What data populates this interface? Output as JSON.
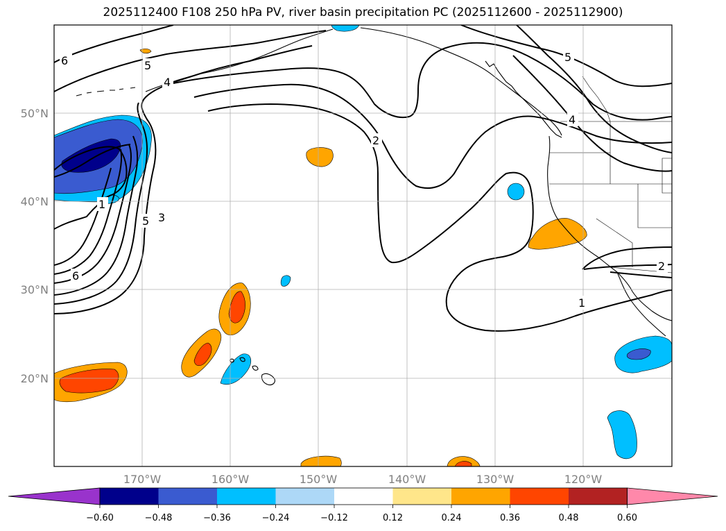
{
  "title": "2025112400 F108 250 hPa PV, river basin precipitation PC (2025112600 - 2025112900)",
  "lon_labels": [
    "170°W",
    "160°W",
    "150°W",
    "140°W",
    "130°W",
    "120°W"
  ],
  "lat_labels": [
    "50°N",
    "40°N",
    "30°N",
    "20°N"
  ],
  "contour_labels": [
    {
      "text": "6",
      "name": "contour-label-6-north"
    },
    {
      "text": "5",
      "name": "contour-label-5-north"
    },
    {
      "text": "4",
      "name": "contour-label-4-north"
    },
    {
      "text": "2",
      "name": "contour-label-2-center"
    },
    {
      "text": "5",
      "name": "contour-label-5-northeast"
    },
    {
      "text": "4",
      "name": "contour-label-4-coast"
    },
    {
      "text": "1",
      "name": "contour-label-1-west"
    },
    {
      "text": "5",
      "name": "contour-label-5-west"
    },
    {
      "text": "3",
      "name": "contour-label-3-west"
    },
    {
      "text": "6",
      "name": "contour-label-6-west"
    },
    {
      "text": "2",
      "name": "contour-label-2-east"
    },
    {
      "text": "1",
      "name": "contour-label-1-south"
    }
  ],
  "colorbar": {
    "ticks": [
      "−0.60",
      "−0.48",
      "−0.36",
      "−0.24",
      "−0.12",
      "0.12",
      "0.24",
      "0.36",
      "0.48",
      "0.60"
    ],
    "colors": [
      "#9933cc",
      "#00008b",
      "#3a5bd0",
      "#00bfff",
      "#add8f7",
      "#ffffff",
      "#ffe68a",
      "#ffa500",
      "#ff4500",
      "#b22222",
      "#ff88aa"
    ]
  }
}
